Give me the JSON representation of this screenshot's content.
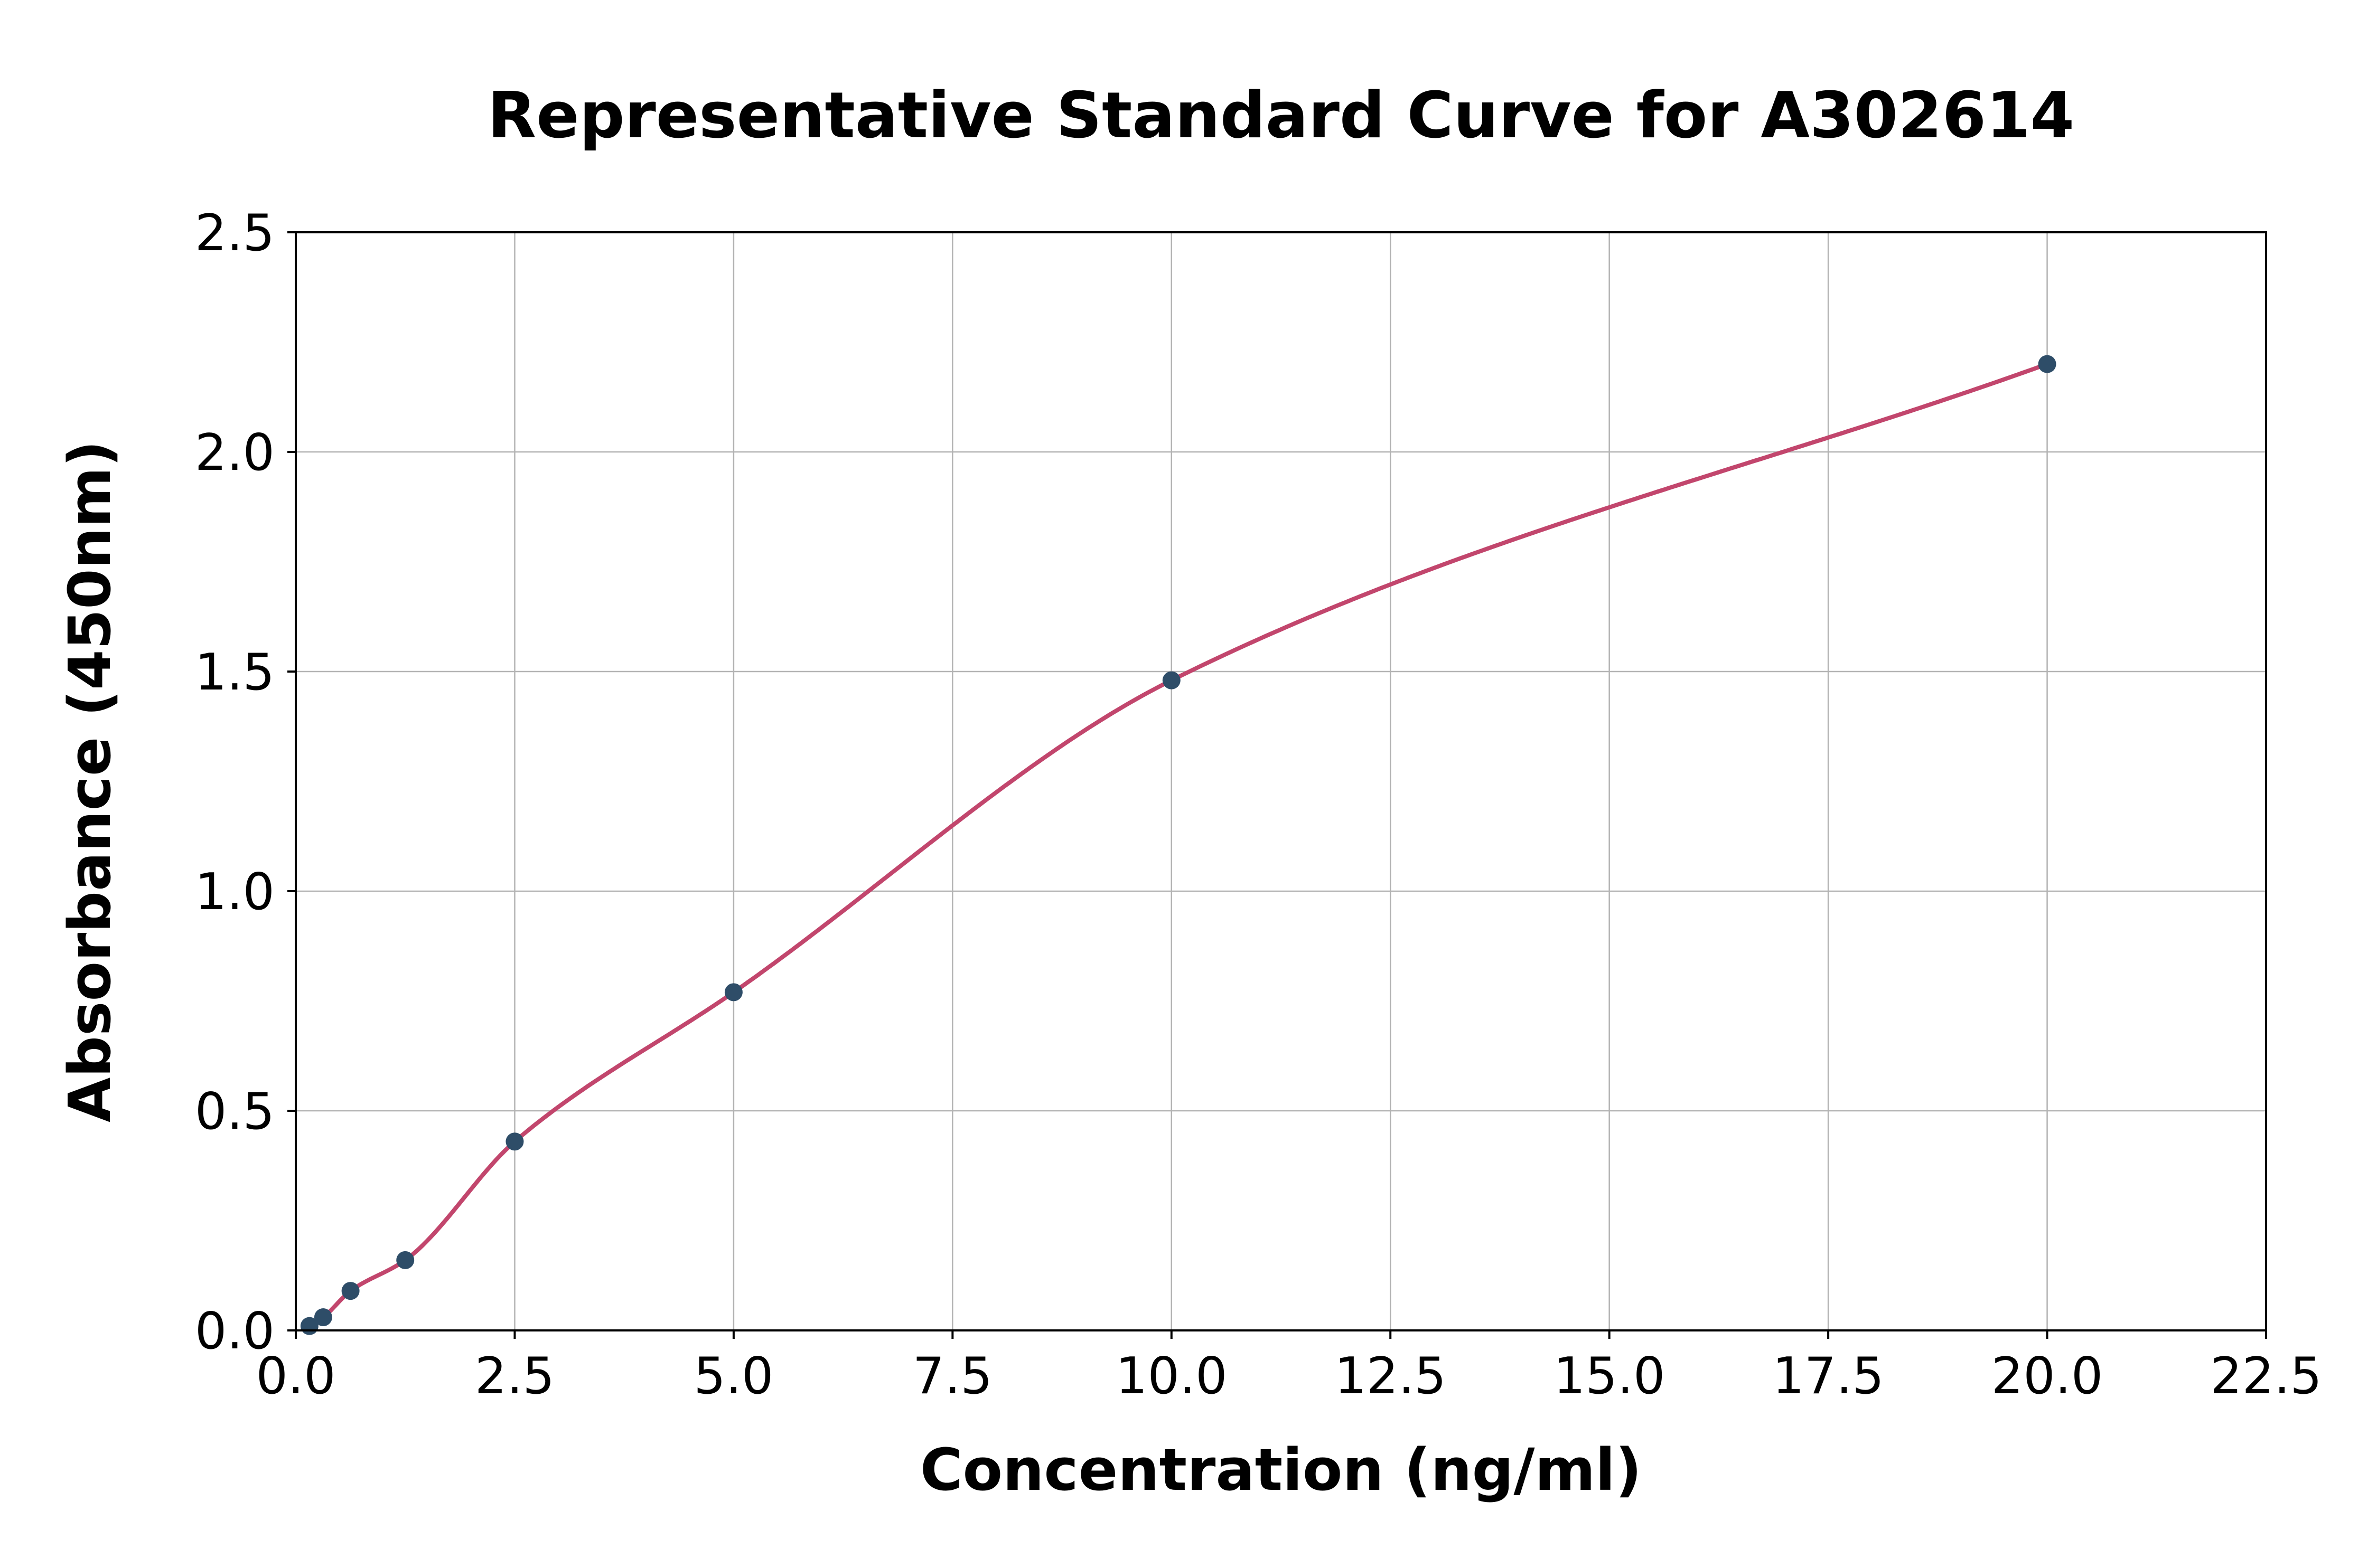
{
  "figure": {
    "title": "Representative Standard Curve for A302614",
    "xlabel": "Concentration (ng/ml)",
    "ylabel": "Absorbance (450nm)"
  },
  "chart_data": {
    "type": "scatter",
    "title": "Representative Standard Curve for A302614",
    "xlabel": "Concentration (ng/ml)",
    "ylabel": "Absorbance (450nm)",
    "xlim": [
      0,
      22.5
    ],
    "ylim": [
      0,
      2.5
    ],
    "xticks": [
      0,
      2.5,
      5,
      7.5,
      10,
      12.5,
      15,
      17.5,
      20,
      22.5
    ],
    "xtick_labels": [
      "0.0",
      "2.5",
      "5.0",
      "7.5",
      "10.0",
      "12.5",
      "15.0",
      "17.5",
      "20.0",
      "22.5"
    ],
    "yticks": [
      0,
      0.5,
      1,
      1.5,
      2,
      2.5
    ],
    "ytick_labels": [
      "0.0",
      "0.5",
      "1.0",
      "1.5",
      "2.0",
      "2.5"
    ],
    "grid": true,
    "legend_position": "none",
    "series": [
      {
        "name": "standard-points",
        "type": "scatter",
        "color": "#2e4d68",
        "x": [
          0.156,
          0.313,
          0.625,
          1.25,
          2.5,
          5.0,
          10.0,
          20.0
        ],
        "y": [
          0.01,
          0.03,
          0.09,
          0.16,
          0.43,
          0.77,
          1.48,
          2.2
        ]
      },
      {
        "name": "fit-curve",
        "type": "line",
        "interpolation": "monotone-cubic",
        "color": "#c2466d",
        "x": [
          0.156,
          0.313,
          0.625,
          1.25,
          2.5,
          5.0,
          10.0,
          20.0
        ],
        "y": [
          0.01,
          0.03,
          0.09,
          0.16,
          0.43,
          0.77,
          1.48,
          2.2
        ]
      }
    ],
    "styles": {
      "grid_color": "#b3b3b3",
      "spine_color": "#000000",
      "tick_color": "#000000",
      "background": "#ffffff"
    }
  }
}
